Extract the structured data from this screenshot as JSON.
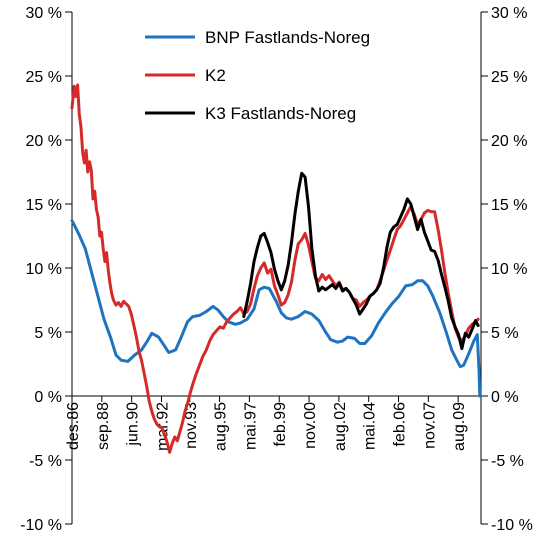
{
  "chart_data": {
    "type": "line",
    "title": "",
    "xlabel": "",
    "ylabel": "",
    "ylim": [
      -10,
      30
    ],
    "y_ticks": [
      -10,
      -5,
      0,
      5,
      10,
      15,
      20,
      25,
      30
    ],
    "y_tick_labels": [
      "-10 %",
      "-5 %",
      "0 %",
      "5 %",
      "10 %",
      "15 %",
      "20 %",
      "25 %",
      "30 %"
    ],
    "x_range": [
      1986.92,
      2010.92
    ],
    "x_ticks": [
      {
        "label": "des.86",
        "x": 1986.92
      },
      {
        "label": "sep.88",
        "x": 1988.67
      },
      {
        "label": "jun.90",
        "x": 1990.42
      },
      {
        "label": "mar.92",
        "x": 1992.17
      },
      {
        "label": "nov.93",
        "x": 1993.83
      },
      {
        "label": "aug.95",
        "x": 1995.58
      },
      {
        "label": "mai.97",
        "x": 1997.33
      },
      {
        "label": "feb.99",
        "x": 1999.08
      },
      {
        "label": "nov.00",
        "x": 2000.83
      },
      {
        "label": "aug.02",
        "x": 2002.58
      },
      {
        "label": "mai.04",
        "x": 2004.33
      },
      {
        "label": "feb.06",
        "x": 2006.08
      },
      {
        "label": "nov.07",
        "x": 2007.83
      },
      {
        "label": "aug.09",
        "x": 2009.58
      }
    ],
    "legend_position": "top-center",
    "grid": false,
    "series": [
      {
        "name": "BNP Fastlands-Noreg",
        "color": "#1f74c0",
        "points": [
          [
            1986.92,
            13.7
          ],
          [
            1987.3,
            12.7
          ],
          [
            1987.7,
            11.5
          ],
          [
            1988.0,
            10.0
          ],
          [
            1988.5,
            7.5
          ],
          [
            1988.8,
            6.0
          ],
          [
            1989.2,
            4.5
          ],
          [
            1989.5,
            3.2
          ],
          [
            1989.8,
            2.8
          ],
          [
            1990.2,
            2.7
          ],
          [
            1990.6,
            3.2
          ],
          [
            1991.0,
            3.6
          ],
          [
            1991.3,
            4.2
          ],
          [
            1991.6,
            4.9
          ],
          [
            1992.0,
            4.6
          ],
          [
            1992.3,
            4.0
          ],
          [
            1992.6,
            3.4
          ],
          [
            1993.0,
            3.6
          ],
          [
            1993.3,
            4.5
          ],
          [
            1993.7,
            5.8
          ],
          [
            1994.0,
            6.2
          ],
          [
            1994.4,
            6.3
          ],
          [
            1994.8,
            6.6
          ],
          [
            1995.2,
            7.0
          ],
          [
            1995.5,
            6.7
          ],
          [
            1995.8,
            6.2
          ],
          [
            1996.1,
            5.8
          ],
          [
            1996.5,
            5.6
          ],
          [
            1996.8,
            5.7
          ],
          [
            1997.2,
            6.0
          ],
          [
            1997.6,
            6.8
          ],
          [
            1997.9,
            8.3
          ],
          [
            1998.2,
            8.5
          ],
          [
            1998.5,
            8.4
          ],
          [
            1998.9,
            7.4
          ],
          [
            1999.2,
            6.5
          ],
          [
            1999.5,
            6.1
          ],
          [
            1999.8,
            6.0
          ],
          [
            2000.2,
            6.2
          ],
          [
            2000.6,
            6.6
          ],
          [
            2001.0,
            6.4
          ],
          [
            2001.4,
            5.9
          ],
          [
            2001.8,
            5.0
          ],
          [
            2002.1,
            4.4
          ],
          [
            2002.5,
            4.2
          ],
          [
            2002.8,
            4.3
          ],
          [
            2003.1,
            4.6
          ],
          [
            2003.5,
            4.5
          ],
          [
            2003.8,
            4.1
          ],
          [
            2004.1,
            4.1
          ],
          [
            2004.5,
            4.7
          ],
          [
            2004.9,
            5.7
          ],
          [
            2005.3,
            6.5
          ],
          [
            2005.7,
            7.2
          ],
          [
            2006.1,
            7.8
          ],
          [
            2006.5,
            8.6
          ],
          [
            2006.9,
            8.7
          ],
          [
            2007.2,
            9.0
          ],
          [
            2007.5,
            9.0
          ],
          [
            2007.8,
            8.6
          ],
          [
            2008.1,
            7.8
          ],
          [
            2008.5,
            6.5
          ],
          [
            2008.9,
            4.9
          ],
          [
            2009.2,
            3.6
          ],
          [
            2009.5,
            2.8
          ],
          [
            2009.7,
            2.3
          ],
          [
            2009.9,
            2.4
          ],
          [
            2010.2,
            3.3
          ],
          [
            2010.5,
            4.3
          ],
          [
            2010.7,
            4.8
          ],
          [
            2010.8,
            2.0
          ],
          [
            2010.85,
            0.0
          ]
        ]
      },
      {
        "name": "K2",
        "color": "#d42a2a",
        "points": [
          [
            1986.92,
            22.5
          ],
          [
            1987.05,
            24.2
          ],
          [
            1987.15,
            23.4
          ],
          [
            1987.25,
            24.3
          ],
          [
            1987.35,
            22.0
          ],
          [
            1987.45,
            21.0
          ],
          [
            1987.55,
            19.0
          ],
          [
            1987.65,
            18.2
          ],
          [
            1987.75,
            19.2
          ],
          [
            1987.85,
            17.5
          ],
          [
            1987.95,
            18.3
          ],
          [
            1988.05,
            17.6
          ],
          [
            1988.15,
            15.4
          ],
          [
            1988.25,
            16.0
          ],
          [
            1988.35,
            14.6
          ],
          [
            1988.45,
            14.0
          ],
          [
            1988.55,
            12.5
          ],
          [
            1988.65,
            12.8
          ],
          [
            1988.75,
            11.5
          ],
          [
            1988.85,
            10.5
          ],
          [
            1988.95,
            11.2
          ],
          [
            1989.05,
            9.8
          ],
          [
            1989.15,
            8.8
          ],
          [
            1989.25,
            8.0
          ],
          [
            1989.35,
            7.5
          ],
          [
            1989.5,
            7.1
          ],
          [
            1989.65,
            7.3
          ],
          [
            1989.8,
            7.0
          ],
          [
            1989.95,
            7.4
          ],
          [
            1990.1,
            7.2
          ],
          [
            1990.25,
            7.0
          ],
          [
            1990.4,
            6.4
          ],
          [
            1990.55,
            5.5
          ],
          [
            1990.7,
            4.6
          ],
          [
            1990.85,
            3.5
          ],
          [
            1991.0,
            2.8
          ],
          [
            1991.15,
            1.8
          ],
          [
            1991.3,
            0.8
          ],
          [
            1991.45,
            -0.4
          ],
          [
            1991.6,
            -1.2
          ],
          [
            1991.75,
            -1.8
          ],
          [
            1991.9,
            -2.2
          ],
          [
            1992.05,
            -2.4
          ],
          [
            1992.2,
            -2.5
          ],
          [
            1992.35,
            -3.0
          ],
          [
            1992.5,
            -3.6
          ],
          [
            1992.65,
            -4.4
          ],
          [
            1992.8,
            -3.7
          ],
          [
            1992.95,
            -3.2
          ],
          [
            1993.1,
            -3.5
          ],
          [
            1993.25,
            -2.8
          ],
          [
            1993.4,
            -2.1
          ],
          [
            1993.55,
            -1.2
          ],
          [
            1993.7,
            -0.6
          ],
          [
            1993.85,
            0.2
          ],
          [
            1994.0,
            0.9
          ],
          [
            1994.2,
            1.7
          ],
          [
            1994.4,
            2.4
          ],
          [
            1994.6,
            3.1
          ],
          [
            1994.8,
            3.6
          ],
          [
            1995.0,
            4.3
          ],
          [
            1995.2,
            4.8
          ],
          [
            1995.4,
            5.1
          ],
          [
            1995.6,
            5.4
          ],
          [
            1995.8,
            5.3
          ],
          [
            1996.0,
            5.8
          ],
          [
            1996.2,
            6.1
          ],
          [
            1996.4,
            6.4
          ],
          [
            1996.6,
            6.6
          ],
          [
            1996.8,
            6.9
          ],
          [
            1997.0,
            6.4
          ],
          [
            1997.2,
            6.6
          ],
          [
            1997.4,
            7.2
          ],
          [
            1997.6,
            8.4
          ],
          [
            1997.8,
            9.4
          ],
          [
            1998.0,
            10.0
          ],
          [
            1998.2,
            10.4
          ],
          [
            1998.4,
            9.6
          ],
          [
            1998.6,
            9.9
          ],
          [
            1998.8,
            8.6
          ],
          [
            1999.0,
            7.9
          ],
          [
            1999.2,
            7.1
          ],
          [
            1999.4,
            7.3
          ],
          [
            1999.6,
            7.9
          ],
          [
            1999.8,
            8.9
          ],
          [
            2000.0,
            10.6
          ],
          [
            2000.2,
            11.9
          ],
          [
            2000.4,
            12.2
          ],
          [
            2000.6,
            12.7
          ],
          [
            2000.8,
            11.8
          ],
          [
            2001.0,
            10.5
          ],
          [
            2001.2,
            9.2
          ],
          [
            2001.4,
            9.0
          ],
          [
            2001.6,
            9.5
          ],
          [
            2001.8,
            9.1
          ],
          [
            2002.0,
            9.4
          ],
          [
            2002.2,
            9.0
          ],
          [
            2002.4,
            8.6
          ],
          [
            2002.6,
            8.9
          ],
          [
            2002.8,
            8.3
          ],
          [
            2003.0,
            8.4
          ],
          [
            2003.2,
            8.1
          ],
          [
            2003.4,
            7.6
          ],
          [
            2003.6,
            7.5
          ],
          [
            2003.8,
            7.0
          ],
          [
            2004.0,
            7.3
          ],
          [
            2004.2,
            7.5
          ],
          [
            2004.4,
            7.8
          ],
          [
            2004.6,
            8.0
          ],
          [
            2004.8,
            8.3
          ],
          [
            2005.0,
            9.0
          ],
          [
            2005.2,
            9.8
          ],
          [
            2005.4,
            10.6
          ],
          [
            2005.6,
            11.4
          ],
          [
            2005.8,
            12.2
          ],
          [
            2006.0,
            13.0
          ],
          [
            2006.2,
            13.3
          ],
          [
            2006.4,
            13.8
          ],
          [
            2006.6,
            14.3
          ],
          [
            2006.8,
            14.8
          ],
          [
            2007.0,
            14.2
          ],
          [
            2007.2,
            13.4
          ],
          [
            2007.4,
            13.8
          ],
          [
            2007.6,
            14.3
          ],
          [
            2007.8,
            14.5
          ],
          [
            2008.0,
            14.4
          ],
          [
            2008.2,
            14.4
          ],
          [
            2008.4,
            13.0
          ],
          [
            2008.6,
            11.4
          ],
          [
            2008.8,
            9.6
          ],
          [
            2009.0,
            8.0
          ],
          [
            2009.2,
            6.6
          ],
          [
            2009.4,
            5.3
          ],
          [
            2009.6,
            4.6
          ],
          [
            2009.8,
            4.3
          ],
          [
            2010.0,
            4.7
          ],
          [
            2010.2,
            5.3
          ],
          [
            2010.4,
            5.6
          ],
          [
            2010.6,
            5.8
          ],
          [
            2010.75,
            6.0
          ]
        ]
      },
      {
        "name": "K3 Fastlands-Noreg",
        "color": "#000000",
        "points": [
          [
            1997.0,
            6.2
          ],
          [
            1997.2,
            7.4
          ],
          [
            1997.4,
            8.8
          ],
          [
            1997.6,
            10.5
          ],
          [
            1997.8,
            11.6
          ],
          [
            1998.0,
            12.5
          ],
          [
            1998.2,
            12.7
          ],
          [
            1998.4,
            12.0
          ],
          [
            1998.6,
            11.2
          ],
          [
            1998.8,
            9.9
          ],
          [
            1999.0,
            9.0
          ],
          [
            1999.2,
            8.3
          ],
          [
            1999.4,
            9.0
          ],
          [
            1999.6,
            10.2
          ],
          [
            1999.8,
            12.0
          ],
          [
            2000.0,
            14.2
          ],
          [
            2000.2,
            16.0
          ],
          [
            2000.4,
            17.4
          ],
          [
            2000.6,
            17.1
          ],
          [
            2000.8,
            14.8
          ],
          [
            2001.0,
            11.5
          ],
          [
            2001.2,
            9.4
          ],
          [
            2001.4,
            8.2
          ],
          [
            2001.6,
            8.5
          ],
          [
            2001.8,
            8.3
          ],
          [
            2002.0,
            8.5
          ],
          [
            2002.2,
            8.7
          ],
          [
            2002.4,
            8.4
          ],
          [
            2002.6,
            8.8
          ],
          [
            2002.8,
            8.2
          ],
          [
            2003.0,
            8.4
          ],
          [
            2003.2,
            8.1
          ],
          [
            2003.4,
            7.6
          ],
          [
            2003.6,
            7.1
          ],
          [
            2003.8,
            6.4
          ],
          [
            2004.0,
            6.8
          ],
          [
            2004.2,
            7.2
          ],
          [
            2004.4,
            7.8
          ],
          [
            2004.6,
            8.0
          ],
          [
            2004.8,
            8.3
          ],
          [
            2005.0,
            8.8
          ],
          [
            2005.2,
            10.0
          ],
          [
            2005.4,
            11.6
          ],
          [
            2005.6,
            12.8
          ],
          [
            2005.8,
            13.2
          ],
          [
            2006.0,
            13.4
          ],
          [
            2006.2,
            14.0
          ],
          [
            2006.4,
            14.6
          ],
          [
            2006.6,
            15.4
          ],
          [
            2006.8,
            15.0
          ],
          [
            2007.0,
            14.0
          ],
          [
            2007.2,
            13.0
          ],
          [
            2007.4,
            13.8
          ],
          [
            2007.6,
            12.8
          ],
          [
            2007.8,
            12.1
          ],
          [
            2008.0,
            11.4
          ],
          [
            2008.2,
            11.3
          ],
          [
            2008.4,
            10.6
          ],
          [
            2008.6,
            9.5
          ],
          [
            2008.8,
            8.5
          ],
          [
            2009.0,
            7.4
          ],
          [
            2009.2,
            6.1
          ],
          [
            2009.4,
            5.4
          ],
          [
            2009.6,
            4.8
          ],
          [
            2009.8,
            3.7
          ],
          [
            2010.0,
            4.9
          ],
          [
            2010.2,
            4.6
          ],
          [
            2010.4,
            5.2
          ],
          [
            2010.6,
            5.9
          ],
          [
            2010.75,
            5.5
          ]
        ]
      }
    ]
  }
}
